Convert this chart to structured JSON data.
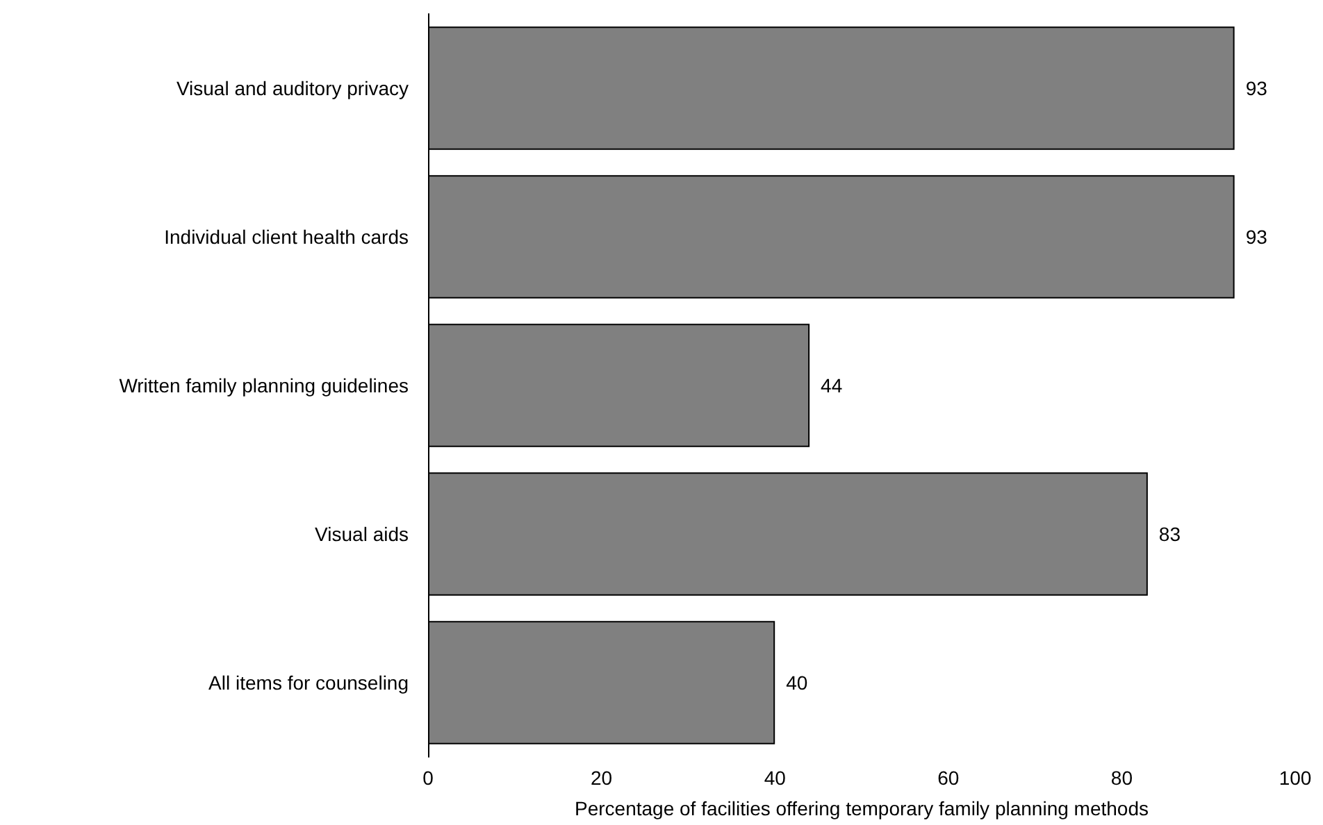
{
  "chart_data": {
    "type": "bar",
    "orientation": "horizontal",
    "categories": [
      "Visual and auditory privacy",
      "Individual client health cards",
      "Written family planning guidelines",
      "Visual aids",
      "All items for counseling"
    ],
    "values": [
      93,
      93,
      44,
      83,
      40
    ],
    "color": "#808080",
    "xlabel": "Percentage of facilities offering temporary family planning methods",
    "xlim": [
      0,
      100
    ],
    "xticks": [
      0,
      20,
      40,
      60,
      80,
      100
    ],
    "data_labels": true
  }
}
